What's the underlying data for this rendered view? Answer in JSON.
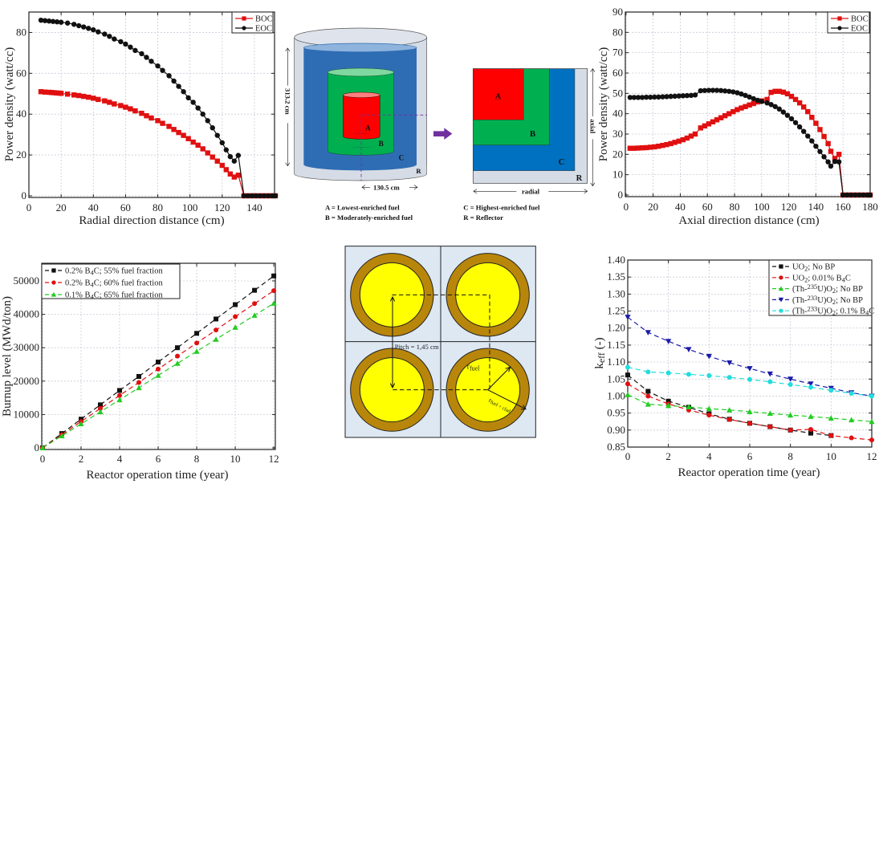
{
  "chart_data": [
    {
      "id": "radial",
      "type": "line",
      "xlabel": "Radial direction distance (cm)",
      "ylabel": "Power density (watt/cc)",
      "xlim": [
        0,
        152.5
      ],
      "ylim": [
        -0.8,
        90
      ],
      "xticks": [
        0,
        20,
        40,
        60,
        80,
        100,
        120,
        140
      ],
      "yticks": [
        0,
        20,
        40,
        60,
        80
      ],
      "grid": true,
      "legend_position": "top-right",
      "series": [
        {
          "name": "BOC",
          "color": "#e01010",
          "marker": "square",
          "x": [
            7.5,
            10,
            12.5,
            14,
            15.5,
            17,
            18.5,
            20,
            24,
            28,
            31,
            34,
            37,
            40,
            43,
            47,
            50,
            53,
            57,
            60,
            63,
            66,
            70,
            73,
            76,
            80,
            83,
            87,
            90,
            93,
            96,
            99,
            102,
            105,
            108,
            111,
            114,
            117,
            120,
            122.5,
            125,
            127.5,
            130,
            133.5,
            136,
            138.5,
            141,
            143.5,
            146,
            148.5,
            151,
            153
          ],
          "y": [
            51,
            50.8,
            50.7,
            50.6,
            50.5,
            50.4,
            50.3,
            50.2,
            49.8,
            49.4,
            49.1,
            48.7,
            48.3,
            47.8,
            47.2,
            46.5,
            45.8,
            45,
            44.2,
            43.4,
            42.6,
            41.6,
            40.4,
            39.2,
            38.1,
            36.8,
            35.5,
            34,
            32.5,
            31,
            29.6,
            28,
            26.3,
            24.8,
            23,
            21,
            19,
            17,
            14.9,
            12.8,
            10.7,
            9.2,
            10.1,
            0,
            0,
            0,
            0,
            0,
            0,
            0,
            0,
            0
          ]
        },
        {
          "name": "EOC",
          "color": "#111111",
          "marker": "circle",
          "x": [
            7.5,
            10,
            12.5,
            15,
            17.5,
            20,
            24,
            28,
            31,
            34,
            37,
            40,
            43,
            47,
            50,
            53,
            57,
            60,
            63,
            66,
            70,
            73,
            76,
            80,
            83,
            87,
            90,
            93,
            96,
            99,
            102,
            105,
            108,
            111,
            114,
            117,
            120,
            122.5,
            125,
            127.5,
            130,
            133.5,
            136,
            138.5,
            141,
            143.5,
            146,
            148.5,
            151,
            153
          ],
          "y": [
            86,
            85.8,
            85.6,
            85.4,
            85.2,
            85,
            84.6,
            84,
            83.3,
            82.7,
            82,
            81.3,
            80.3,
            79.2,
            78.1,
            76.8,
            75.5,
            74.3,
            72.8,
            71.2,
            69.6,
            67.8,
            65.9,
            63.6,
            61.4,
            58.8,
            56.2,
            53.6,
            51,
            48,
            45.8,
            43,
            40,
            36.8,
            33.3,
            29.6,
            26,
            22.5,
            19.2,
            17,
            19.8,
            0,
            0,
            0,
            0,
            0,
            0,
            0,
            0,
            0
          ]
        }
      ]
    },
    {
      "id": "axial",
      "type": "line",
      "xlabel": "Axial direction distance (cm)",
      "ylabel": "Power density (watt/cc)",
      "xlim": [
        -0.5,
        180
      ],
      "ylim": [
        -0.8,
        90
      ],
      "xticks": [
        0,
        20,
        40,
        60,
        80,
        100,
        120,
        140,
        160,
        180
      ],
      "yticks": [
        0,
        10,
        20,
        30,
        40,
        50,
        60,
        70,
        80,
        90
      ],
      "grid": true,
      "legend_position": "top-right",
      "series": [
        {
          "name": "BOC",
          "color": "#e01010",
          "marker": "square",
          "x": [
            3,
            6,
            9,
            12,
            15,
            18,
            21,
            24,
            27,
            30,
            33,
            36,
            39,
            42,
            45,
            48,
            51,
            55,
            58,
            61,
            64,
            67,
            70,
            73,
            76,
            79,
            82,
            85,
            88,
            91,
            94,
            97,
            100,
            104,
            107,
            110,
            113,
            116,
            119,
            122,
            125,
            128,
            131,
            134,
            137,
            140,
            143,
            146,
            149,
            151,
            154,
            157,
            160,
            163,
            166,
            169,
            172,
            175,
            178,
            180
          ],
          "y": [
            23,
            23,
            23.1,
            23.2,
            23.3,
            23.5,
            23.7,
            24,
            24.4,
            24.8,
            25.3,
            25.9,
            26.5,
            27.2,
            28,
            29,
            30,
            33,
            34,
            35,
            36,
            37,
            38,
            39,
            40,
            41,
            42,
            42.8,
            43.5,
            44.3,
            45,
            45.8,
            46.3,
            47,
            50.5,
            51,
            51,
            50.6,
            49.8,
            48.5,
            47,
            45.3,
            43.3,
            41,
            38.2,
            35.3,
            32.2,
            28.8,
            25.3,
            21.5,
            18,
            20,
            0,
            0,
            0,
            0,
            0,
            0,
            0,
            0
          ]
        },
        {
          "name": "EOC",
          "color": "#111111",
          "marker": "circle",
          "x": [
            3,
            6,
            9,
            12,
            15,
            18,
            21,
            24,
            27,
            30,
            33,
            36,
            39,
            42,
            45,
            48,
            51,
            55,
            58,
            61,
            64,
            67,
            70,
            73,
            76,
            79,
            82,
            85,
            88,
            91,
            94,
            97,
            100,
            104,
            107,
            110,
            113,
            116,
            119,
            122,
            125,
            128,
            131,
            134,
            137,
            140,
            143,
            146,
            149,
            151,
            154,
            157,
            160,
            163,
            166,
            169,
            172,
            175,
            178,
            180
          ],
          "y": [
            48,
            48,
            48,
            48,
            48.1,
            48.1,
            48.2,
            48.2,
            48.3,
            48.4,
            48.5,
            48.6,
            48.7,
            48.8,
            48.9,
            49,
            49.2,
            51.3,
            51.4,
            51.5,
            51.5,
            51.5,
            51.4,
            51.2,
            51,
            50.7,
            50.3,
            49.7,
            49,
            48.2,
            47.4,
            46.6,
            46,
            45.3,
            44.5,
            43.5,
            42.3,
            40.8,
            39.2,
            37.5,
            35.6,
            33.5,
            31.3,
            29,
            26.6,
            24,
            21.4,
            18.8,
            16.3,
            14.2,
            16.5,
            16.3,
            0,
            0,
            0,
            0,
            0,
            0,
            0,
            0
          ]
        }
      ]
    },
    {
      "id": "burnup",
      "type": "line",
      "xlabel": "Reactor operation time (year)",
      "ylabel": "Burnup level (MWd/ton)",
      "xlim": [
        -0.04,
        12.08
      ],
      "ylim": [
        -480,
        55290
      ],
      "xticks": [
        0,
        2,
        4,
        6,
        8,
        10,
        12
      ],
      "yticks": [
        0,
        10000,
        20000,
        30000,
        40000,
        50000
      ],
      "grid": true,
      "legend_position": "top-left",
      "series": [
        {
          "name": "0.2% B_{4}C; 55% fuel fraction",
          "color": "#111111",
          "marker": "square",
          "x": [
            0,
            1,
            2,
            3,
            4,
            5,
            6,
            7,
            8,
            9,
            10,
            11,
            12
          ],
          "y": [
            0,
            4300,
            8600,
            12900,
            17200,
            21400,
            25700,
            30000,
            34300,
            38600,
            42900,
            47200,
            51500
          ]
        },
        {
          "name": "0.2% B_{4}C; 60% fuel fraction",
          "color": "#e01010",
          "marker": "circle",
          "x": [
            0,
            1,
            2,
            3,
            4,
            5,
            6,
            7,
            8,
            9,
            10,
            11,
            12
          ],
          "y": [
            0,
            3900,
            7900,
            11800,
            15700,
            19600,
            23600,
            27500,
            31400,
            35300,
            39300,
            43200,
            47100
          ]
        },
        {
          "name": "0.1% B_{4}C; 65% fuel fraction",
          "color": "#22cc22",
          "marker": "triangle-up",
          "x": [
            0,
            1,
            2,
            3,
            4,
            5,
            6,
            7,
            8,
            9,
            10,
            11,
            12
          ],
          "y": [
            0,
            3600,
            7200,
            10800,
            14400,
            18000,
            21700,
            25300,
            28900,
            32500,
            36100,
            39700,
            43300
          ]
        }
      ]
    },
    {
      "id": "keff",
      "type": "line",
      "xlabel": "Reactor operation time (year)",
      "ylabel": "k_{eff} (-)",
      "xlim": [
        0,
        12
      ],
      "ylim": [
        0.85,
        1.4
      ],
      "xticks": [
        0,
        2,
        4,
        6,
        8,
        10,
        12
      ],
      "yticks": [
        0.85,
        0.9,
        0.95,
        1.0,
        1.05,
        1.1,
        1.15,
        1.2,
        1.25,
        1.3,
        1.35,
        1.4
      ],
      "grid": true,
      "legend_position": "top-right",
      "series": [
        {
          "name": "UO_{2}; No BP",
          "color": "#111111",
          "marker": "square",
          "x": [
            0,
            1,
            2,
            3,
            4,
            5,
            6,
            7,
            8,
            9,
            10
          ],
          "y": [
            1.062,
            1.014,
            0.985,
            0.967,
            0.948,
            0.932,
            0.92,
            0.91,
            0.9,
            0.891,
            0.884
          ]
        },
        {
          "name": "UO_{2}; 0.01% B_{4}C",
          "color": "#e01010",
          "marker": "circle",
          "x": [
            0,
            1,
            2,
            3,
            4,
            5,
            6,
            7,
            8,
            9,
            10,
            11,
            12
          ],
          "y": [
            1.036,
            1.0,
            0.977,
            0.959,
            0.944,
            0.931,
            0.92,
            0.91,
            0.9,
            0.902,
            0.884,
            0.877,
            0.871
          ]
        },
        {
          "name": "(Th-^{235}U)O_{2}; No BP",
          "color": "#22cc22",
          "marker": "triangle-up",
          "x": [
            0,
            1,
            2,
            3,
            4,
            5,
            6,
            7,
            8,
            9,
            10,
            11,
            12
          ],
          "y": [
            1.004,
            0.976,
            0.972,
            0.968,
            0.963,
            0.959,
            0.954,
            0.949,
            0.944,
            0.94,
            0.935,
            0.93,
            0.925
          ]
        },
        {
          "name": "(Th-^{233}U)O_{2}; No BP",
          "color": "#1a1aaa",
          "marker": "triangle-down",
          "x": [
            0,
            1,
            2,
            3,
            4,
            5,
            6,
            7,
            8,
            9,
            10,
            11,
            12
          ],
          "y": [
            1.232,
            1.187,
            1.161,
            1.137,
            1.117,
            1.098,
            1.081,
            1.065,
            1.05,
            1.036,
            1.023,
            1.01,
            1.0
          ]
        },
        {
          "name": "(Th-^{233}U)O_{2}; 0.1% B_{4}C",
          "color": "#22dddd",
          "marker": "circle",
          "x": [
            0,
            1,
            2,
            3,
            4,
            5,
            6,
            7,
            8,
            9,
            10,
            11,
            12
          ],
          "y": [
            1.085,
            1.071,
            1.068,
            1.064,
            1.06,
            1.055,
            1.049,
            1.042,
            1.034,
            1.026,
            1.017,
            1.008,
            1.0
          ]
        }
      ]
    }
  ],
  "core_diagram": {
    "height_label": "313.2 cm",
    "radius_label": "130.5 cm",
    "zone_a": "A",
    "zone_b": "B",
    "zone_c": "C",
    "zone_r": "R",
    "axial_label": "axial",
    "radial_label": "radial",
    "legend": [
      "A = Lowest-enriched fuel",
      "B = Moderately-enriched fuel",
      "C = Highest-enriched fuel",
      "R = Reflector"
    ],
    "colors": {
      "A": "#ff0000",
      "B": "#00b050",
      "C": "#2e6db4",
      "R": "#d6dce6",
      "arrow": "#7030a0"
    }
  },
  "pin_diagram": {
    "pitch_label": "Pitch = 1,45 cm",
    "r_fuel": "r_{fuel}",
    "r_fuel_clad": "r_{fuel + clad}",
    "colors": {
      "fuel": "#ffff00",
      "clad": "#b8860b",
      "coolant": "#dde8f3"
    }
  }
}
